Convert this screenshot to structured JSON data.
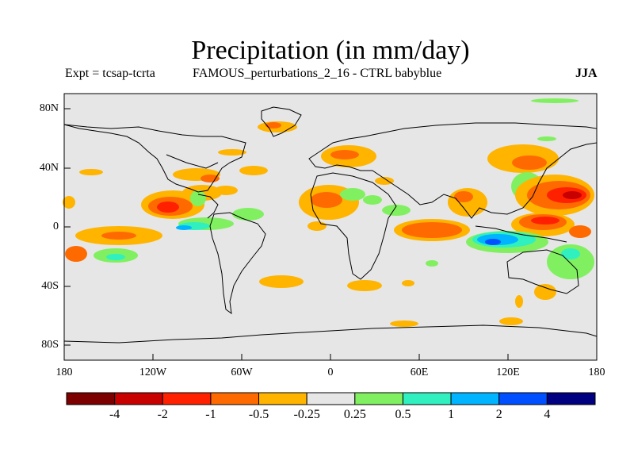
{
  "title": "Precipitation (in mm/day)",
  "left_subtitle": "Expt = tcsap-tcrta",
  "center_subtitle": "FAMOUS_perturbations_2_16 - CTRL babyblue",
  "season": "JJA",
  "lat_labels": [
    "80N",
    "40N",
    "0",
    "40S",
    "80S"
  ],
  "lon_labels": [
    "180",
    "120W",
    "60W",
    "0",
    "60E",
    "120E",
    "180"
  ],
  "colorbar": {
    "colors": [
      "#7d0000",
      "#c80000",
      "#ff2000",
      "#ff6a00",
      "#ffb400",
      "#e6e6e6",
      "#80f060",
      "#30f0c0",
      "#00b4ff",
      "#0050ff",
      "#000080"
    ],
    "labels": [
      "-4",
      "-2",
      "-1",
      "-0.5",
      "-0.25",
      "0.25",
      "0.5",
      "1",
      "2",
      "4"
    ]
  },
  "map_background": "#e6e6e6"
}
